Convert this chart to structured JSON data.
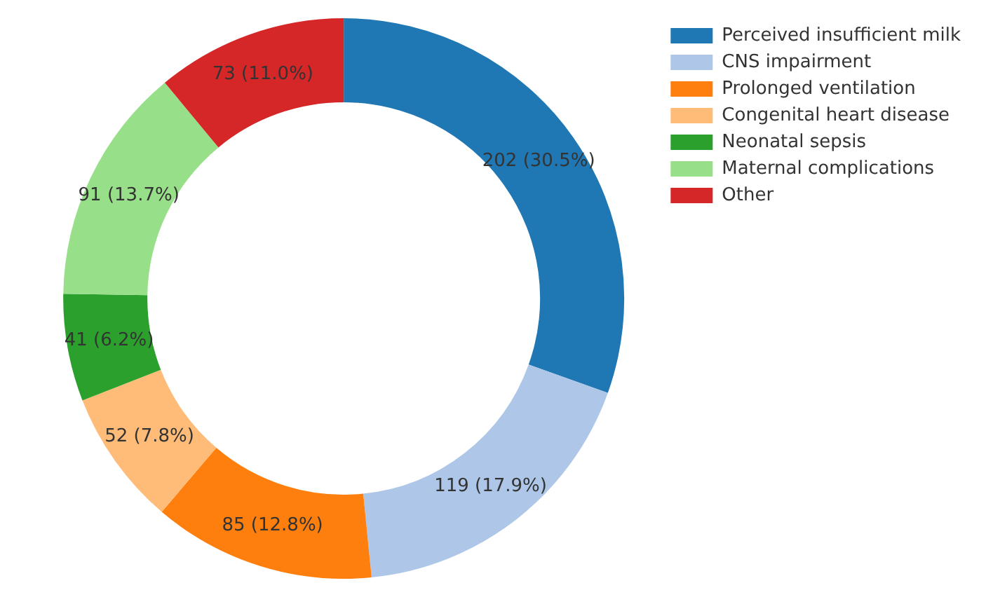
{
  "chart_data": {
    "type": "donut",
    "categories": [
      "Perceived insufficient milk",
      "CNS impairment",
      "Prolonged ventilation",
      "Congenital heart disease",
      "Neonatal sepsis",
      "Maternal complications",
      "Other"
    ],
    "values": [
      202,
      119,
      85,
      52,
      41,
      91,
      73
    ],
    "colors": [
      "#1f77b4",
      "#aec7e8",
      "#ff7f0e",
      "#ffbb78",
      "#2ca02c",
      "#98df8a",
      "#d62728"
    ],
    "value_labels": [
      "202 (30.5%)",
      "119 (17.9%)",
      "85 (12.8%)",
      "52 (7.8%)",
      "41 (6.2%)",
      "91 (13.7%)",
      "73 (11.0%)"
    ],
    "legend": "top right"
  }
}
